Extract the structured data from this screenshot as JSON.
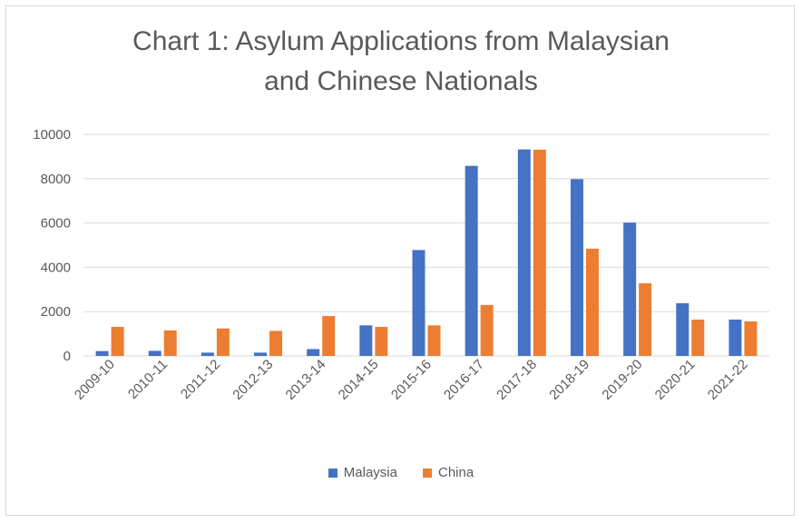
{
  "chart_data": {
    "type": "bar",
    "title_line1": "Chart 1: Asylum Applications from Malaysian",
    "title_line2": "and Chinese Nationals",
    "categories": [
      "2009-10",
      "2010-11",
      "2011-12",
      "2012-13",
      "2013-14",
      "2014-15",
      "2015-16",
      "2016-17",
      "2017-18",
      "2018-19",
      "2019-20",
      "2020-21",
      "2021-22"
    ],
    "series": [
      {
        "name": "Malaysia",
        "color": "#4472c4",
        "values": [
          220,
          230,
          150,
          150,
          310,
          1380,
          4780,
          8580,
          9320,
          7980,
          6020,
          2380,
          1640
        ]
      },
      {
        "name": "China",
        "color": "#ed7d31",
        "values": [
          1310,
          1150,
          1240,
          1130,
          1800,
          1310,
          1380,
          2300,
          9310,
          4840,
          3280,
          1640,
          1560
        ]
      }
    ],
    "ylim": [
      0,
      10000
    ],
    "yticks": [
      "0",
      "2000",
      "4000",
      "6000",
      "8000",
      "10000"
    ],
    "gridlines": true,
    "legend_position": "bottom"
  }
}
